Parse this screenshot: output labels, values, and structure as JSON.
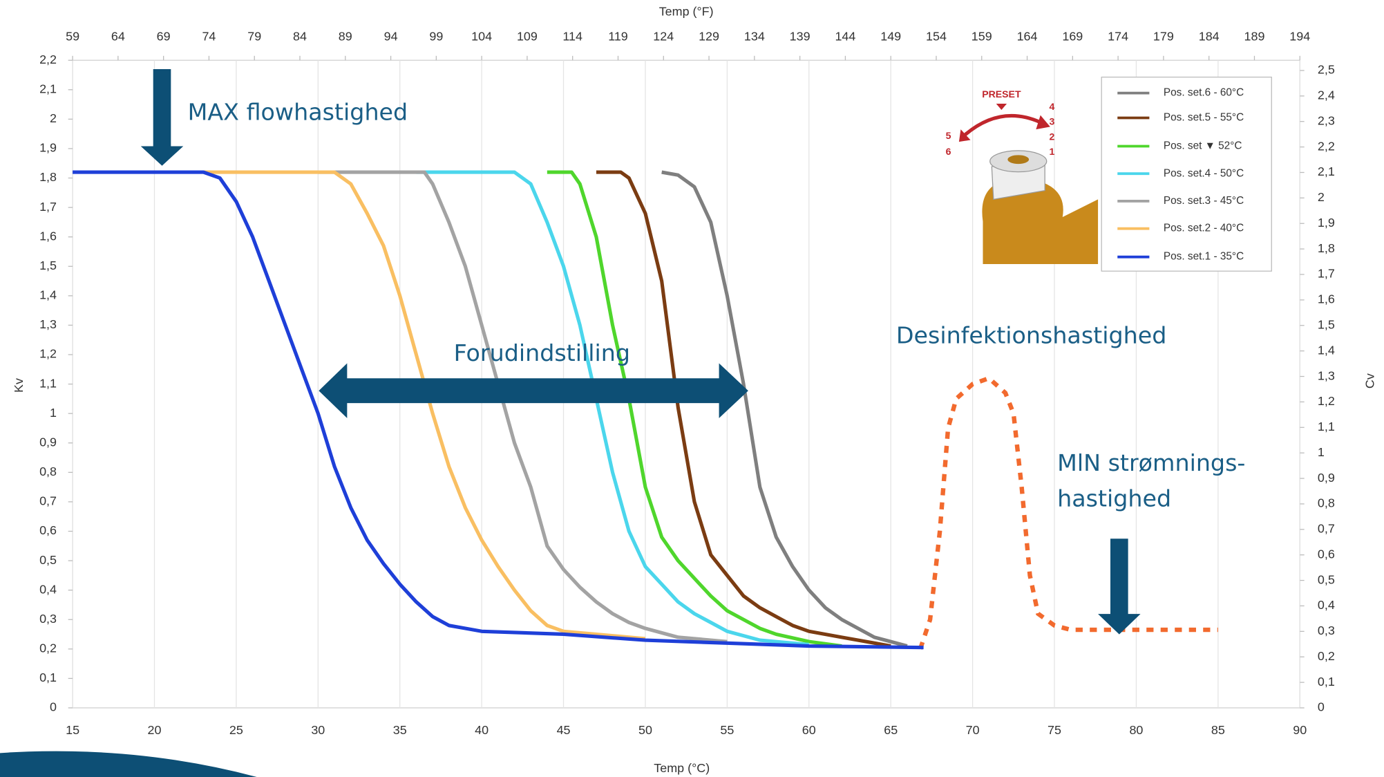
{
  "chart_data": {
    "type": "line",
    "x_title_top": "Temp (°F)",
    "x_title": "Temp (°C)",
    "y_title": "Kv",
    "y2_title": "Cv",
    "xlim": [
      15,
      90
    ],
    "xticks": [
      15,
      20,
      25,
      30,
      35,
      40,
      45,
      50,
      55,
      60,
      65,
      70,
      75,
      80,
      85,
      90
    ],
    "x2lim": [
      59,
      194
    ],
    "x2ticks": [
      59,
      64,
      69,
      74,
      79,
      84,
      89,
      94,
      99,
      104,
      109,
      114,
      119,
      124,
      129,
      134,
      139,
      144,
      149,
      154,
      159,
      164,
      169,
      174,
      179,
      184,
      189,
      194
    ],
    "ylim": [
      0,
      2.2
    ],
    "yticks": [
      0,
      {
        "value": 0.1,
        "label": "0,1"
      },
      {
        "value": 0.2,
        "label": "0,2"
      },
      {
        "value": 0.3,
        "label": "0,3"
      },
      {
        "value": 0.4,
        "label": "0,4"
      },
      {
        "value": 0.5,
        "label": "0,5"
      },
      {
        "value": 0.6,
        "label": "0,6"
      },
      {
        "value": 0.7,
        "label": "0,7"
      },
      {
        "value": 0.8,
        "label": "0,8"
      },
      {
        "value": 0.9,
        "label": "0,9"
      },
      1,
      {
        "value": 1.1,
        "label": "1,1"
      },
      {
        "value": 1.2,
        "label": "1,2"
      },
      {
        "value": 1.3,
        "label": "1,3"
      },
      {
        "value": 1.4,
        "label": "1,4"
      },
      {
        "value": 1.5,
        "label": "1,5"
      },
      {
        "value": 1.6,
        "label": "1,6"
      },
      {
        "value": 1.7,
        "label": "1,7"
      },
      {
        "value": 1.8,
        "label": "1,8"
      },
      {
        "value": 1.9,
        "label": "1,9"
      },
      2,
      {
        "value": 2.1,
        "label": "2,1"
      },
      {
        "value": 2.2,
        "label": "2,2"
      }
    ],
    "y2lim": [
      0,
      2.54
    ],
    "y2ticks": [
      0,
      {
        "value": 0.1,
        "label": "0,1"
      },
      {
        "value": 0.2,
        "label": "0,2"
      },
      {
        "value": 0.3,
        "label": "0,3"
      },
      {
        "value": 0.4,
        "label": "0,4"
      },
      {
        "value": 0.5,
        "label": "0,5"
      },
      {
        "value": 0.6,
        "label": "0,6"
      },
      {
        "value": 0.7,
        "label": "0,7"
      },
      {
        "value": 0.8,
        "label": "0,8"
      },
      {
        "value": 0.9,
        "label": "0,9"
      },
      1,
      {
        "value": 1.1,
        "label": "1,1"
      },
      {
        "value": 1.2,
        "label": "1,2"
      },
      {
        "value": 1.3,
        "label": "1,3"
      },
      {
        "value": 1.4,
        "label": "1,4"
      },
      {
        "value": 1.5,
        "label": "1,5"
      },
      {
        "value": 1.6,
        "label": "1,6"
      },
      {
        "value": 1.7,
        "label": "1,7"
      },
      {
        "value": 1.8,
        "label": "1,8"
      },
      {
        "value": 1.9,
        "label": "1,9"
      },
      2,
      {
        "value": 2.1,
        "label": "2,1"
      },
      {
        "value": 2.2,
        "label": "2,2"
      },
      {
        "value": 2.3,
        "label": "2,3"
      },
      {
        "value": 2.4,
        "label": "2,4"
      },
      {
        "value": 2.5,
        "label": "2,5"
      }
    ],
    "grid": true,
    "legend": "upper right",
    "series": [
      {
        "name": "Pos. set.6 - 60°C",
        "color": "#7f7f7f",
        "x": [
          51,
          52,
          53,
          54,
          55,
          56,
          57,
          58,
          59,
          60,
          61,
          62,
          63,
          64,
          66
        ],
        "values": [
          1.82,
          1.81,
          1.77,
          1.65,
          1.4,
          1.1,
          0.75,
          0.58,
          0.48,
          0.4,
          0.34,
          0.3,
          0.27,
          0.24,
          0.21
        ]
      },
      {
        "name": "Pos. set.5 - 55°C",
        "color": "#7b3c12",
        "x": [
          47,
          48.5,
          49,
          50,
          51,
          52,
          53,
          54,
          55,
          56,
          57,
          58,
          59,
          60,
          62,
          65
        ],
        "values": [
          1.82,
          1.82,
          1.8,
          1.68,
          1.45,
          1.02,
          0.7,
          0.52,
          0.45,
          0.38,
          0.34,
          0.31,
          0.28,
          0.26,
          0.24,
          0.21
        ]
      },
      {
        "name": "Pos. set ▼ 52°C",
        "color": "#4fd62c",
        "x": [
          44,
          45.5,
          46,
          47,
          48,
          49,
          50,
          51,
          52,
          53,
          54,
          55,
          56,
          57,
          58,
          60,
          62
        ],
        "values": [
          1.82,
          1.82,
          1.78,
          1.6,
          1.3,
          1.05,
          0.75,
          0.58,
          0.5,
          0.44,
          0.38,
          0.33,
          0.3,
          0.27,
          0.25,
          0.225,
          0.21
        ]
      },
      {
        "name": "Pos. set.4 - 50°C",
        "color": "#4bd6ec",
        "x": [
          36,
          42,
          43,
          44,
          45,
          46,
          47,
          48,
          49,
          50,
          51,
          52,
          53,
          54,
          55,
          57,
          60
        ],
        "values": [
          1.82,
          1.82,
          1.78,
          1.65,
          1.5,
          1.3,
          1.05,
          0.8,
          0.6,
          0.48,
          0.42,
          0.36,
          0.32,
          0.29,
          0.26,
          0.23,
          0.215
        ]
      },
      {
        "name": "Pos. set.3 - 45°C",
        "color": "#a3a3a3",
        "x": [
          30,
          36.5,
          37,
          38,
          39,
          40,
          41,
          42,
          43,
          44,
          45,
          46,
          47,
          48,
          49,
          50,
          52,
          55
        ],
        "values": [
          1.82,
          1.82,
          1.78,
          1.65,
          1.5,
          1.3,
          1.1,
          0.9,
          0.75,
          0.55,
          0.47,
          0.41,
          0.36,
          0.32,
          0.29,
          0.27,
          0.24,
          0.225
        ]
      },
      {
        "name": "Pos. set.2 - 40°C",
        "color": "#f9bf62",
        "x": [
          23,
          31,
          32,
          33,
          34,
          35,
          36,
          37,
          38,
          39,
          40,
          41,
          42,
          43,
          44,
          45,
          50
        ],
        "values": [
          1.82,
          1.82,
          1.78,
          1.68,
          1.57,
          1.4,
          1.2,
          1.0,
          0.82,
          0.68,
          0.57,
          0.48,
          0.4,
          0.33,
          0.28,
          0.26,
          0.235
        ]
      },
      {
        "name": "Pos. set.1 - 35°C",
        "color": "#1e3fd8",
        "x": [
          15,
          23,
          24,
          25,
          26,
          27,
          28,
          29,
          30,
          31,
          32,
          33,
          34,
          35,
          36,
          37,
          38,
          39,
          40,
          45,
          50,
          55,
          60,
          67
        ],
        "values": [
          1.82,
          1.82,
          1.8,
          1.72,
          1.6,
          1.45,
          1.3,
          1.15,
          1.0,
          0.82,
          0.68,
          0.57,
          0.49,
          0.42,
          0.36,
          0.31,
          0.28,
          0.27,
          0.26,
          0.25,
          0.23,
          0.22,
          0.21,
          0.205
        ]
      }
    ],
    "disinfection": {
      "color": "#f26a2e",
      "x": [
        66.8,
        67.4,
        68,
        68.5,
        69,
        70,
        71,
        72,
        72.5,
        73,
        73.5,
        74,
        75,
        76,
        85
      ],
      "values": [
        0.2,
        0.3,
        0.6,
        0.95,
        1.05,
        1.1,
        1.12,
        1.07,
        1.0,
        0.75,
        0.45,
        0.32,
        0.28,
        0.265,
        0.265
      ]
    },
    "annotations": [
      "MAX flowhastighed",
      "Forudindstilling",
      "Desinfektionshastighed",
      "MlN strømnings-",
      "hastighed"
    ],
    "inset": {
      "title": "PRESET",
      "left_numbers": [
        "5",
        "6"
      ],
      "right_numbers": [
        "4",
        "3",
        "2",
        "1"
      ]
    }
  }
}
